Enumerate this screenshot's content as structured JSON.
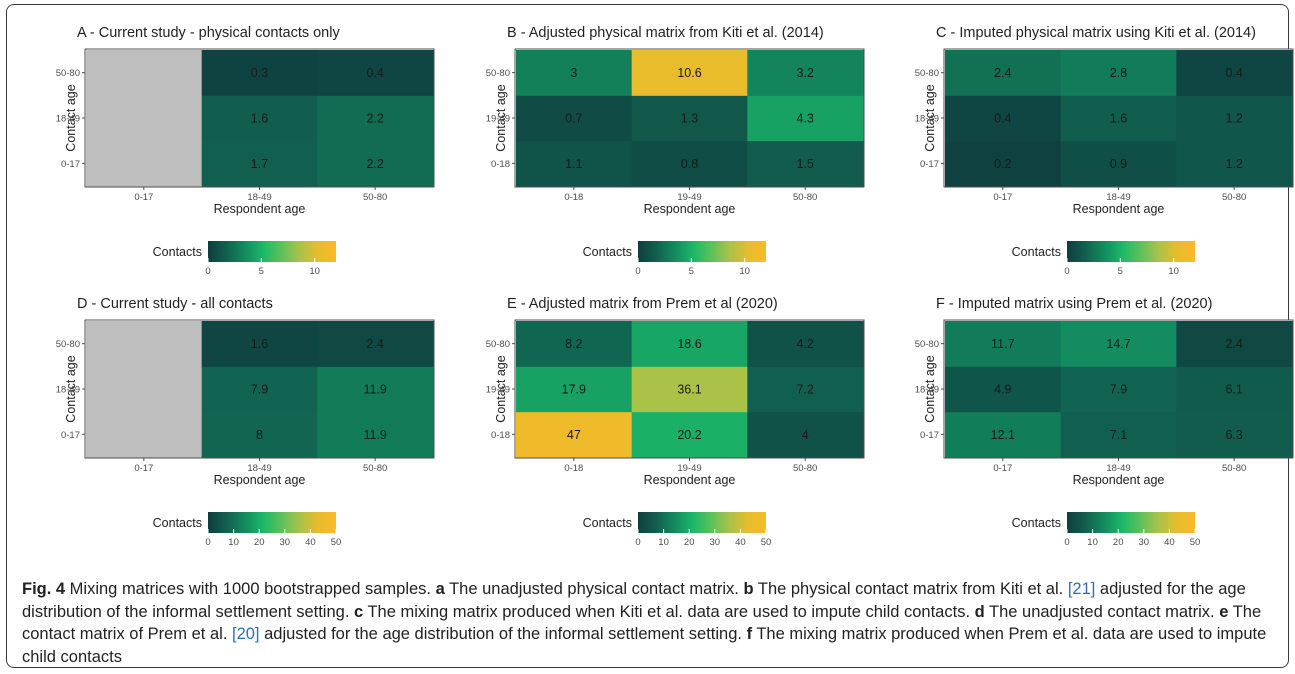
{
  "colors": {
    "scale": [
      "#0f3d3e",
      "#11604f",
      "#138a5e",
      "#1bb868",
      "#5cc05c",
      "#a8c24a",
      "#e6bd2d",
      "#f8b92a"
    ],
    "na": "#bebebe"
  },
  "panels_common": {
    "y_title": "Contact age",
    "x_title": "Respondent age",
    "legend_title": "Contacts"
  },
  "chart_data": [
    {
      "type": "heatmap",
      "title": "A - Current study - physical contacts only",
      "xcats": [
        "0-17",
        "18-49",
        "50-80"
      ],
      "ycats": [
        "0-17",
        "18-49",
        "50-80"
      ],
      "values": [
        [
          null,
          1.7,
          2.2
        ],
        [
          null,
          1.6,
          2.2
        ],
        [
          null,
          0.3,
          0.4
        ]
      ],
      "xlabel": "Respondent age",
      "ylabel": "Contact age",
      "scale_max": 12,
      "legend_ticks": [
        0,
        5,
        10
      ]
    },
    {
      "type": "heatmap",
      "title": "B - Adjusted physical matrix from Kiti et al. (2014)",
      "xcats": [
        "0-18",
        "19-49",
        "50-80"
      ],
      "ycats": [
        "0-18",
        "19-49",
        "50-80"
      ],
      "values": [
        [
          1.1,
          0.8,
          1.5
        ],
        [
          0.7,
          1.3,
          4.3
        ],
        [
          3,
          10.6,
          3.2
        ]
      ],
      "xlabel": "Respondent age",
      "ylabel": "Contact age",
      "scale_max": 12,
      "legend_ticks": [
        0,
        5,
        10
      ]
    },
    {
      "type": "heatmap",
      "title": "C - Imputed physical matrix using Kiti et al. (2014)",
      "xcats": [
        "0-17",
        "18-49",
        "50-80"
      ],
      "ycats": [
        "0-17",
        "18-49",
        "50-80"
      ],
      "values": [
        [
          0.2,
          0.9,
          1.2
        ],
        [
          0.4,
          1.6,
          1.2
        ],
        [
          2.4,
          2.8,
          0.4
        ]
      ],
      "xlabel": "Respondent age",
      "ylabel": "Contact age",
      "scale_max": 12,
      "legend_ticks": [
        0,
        5,
        10
      ]
    },
    {
      "type": "heatmap",
      "title": "D - Current study - all contacts",
      "xcats": [
        "0-17",
        "18-49",
        "50-80"
      ],
      "ycats": [
        "0-17",
        "18-49",
        "50-80"
      ],
      "values": [
        [
          null,
          8,
          11.9
        ],
        [
          null,
          7.9,
          11.9
        ],
        [
          null,
          1.6,
          2.4
        ]
      ],
      "xlabel": "Respondent age",
      "ylabel": "Contact age",
      "scale_max": 50,
      "legend_ticks": [
        0,
        10,
        20,
        30,
        40,
        50
      ]
    },
    {
      "type": "heatmap",
      "title": "E - Adjusted matrix from Prem et al (2020)",
      "xcats": [
        "0-18",
        "19-49",
        "50-80"
      ],
      "ycats": [
        "0-18",
        "19-49",
        "50-80"
      ],
      "values": [
        [
          47,
          20.2,
          4
        ],
        [
          17.9,
          36.1,
          7.2
        ],
        [
          8.2,
          18.6,
          4.2
        ]
      ],
      "xlabel": "Respondent age",
      "ylabel": "Contact age",
      "scale_max": 50,
      "legend_ticks": [
        0,
        10,
        20,
        30,
        40,
        50
      ]
    },
    {
      "type": "heatmap",
      "title": "F - Imputed matrix using Prem et al. (2020)",
      "xcats": [
        "0-17",
        "18-49",
        "50-80"
      ],
      "ycats": [
        "0-17",
        "18-49",
        "50-80"
      ],
      "values": [
        [
          12.1,
          7.1,
          6.3
        ],
        [
          4.9,
          7.9,
          6.1
        ],
        [
          11.7,
          14.7,
          2.4
        ]
      ],
      "xlabel": "Respondent age",
      "ylabel": "Contact age",
      "scale_max": 50,
      "legend_ticks": [
        0,
        10,
        20,
        30,
        40,
        50
      ]
    }
  ],
  "caption": {
    "fig_label": "Fig. 4",
    "intro": " Mixing matrices with 1000 bootstrapped samples. ",
    "a_label": "a",
    "a_text": " The unadjusted physical contact matrix. ",
    "b_label": "b",
    "b_text_1": " The physical contact matrix from Kiti et al. ",
    "b_ref": "[21]",
    "b_text_2": " adjusted for the age distribution of the informal settlement setting. ",
    "c_label": "c",
    "c_text": " The mixing matrix produced when Kiti et al. data are used to impute child contacts. ",
    "d_label": "d",
    "d_text": " The unadjusted contact matrix. ",
    "e_label": "e",
    "e_text_1": " The contact matrix of Prem et al. ",
    "e_ref": "[20]",
    "e_text_2": " adjusted for the age distribution of the informal settlement setting. ",
    "f_label": "f",
    "f_text": " The mixing matrix produced when Prem et al. data are used to impute child contacts"
  }
}
